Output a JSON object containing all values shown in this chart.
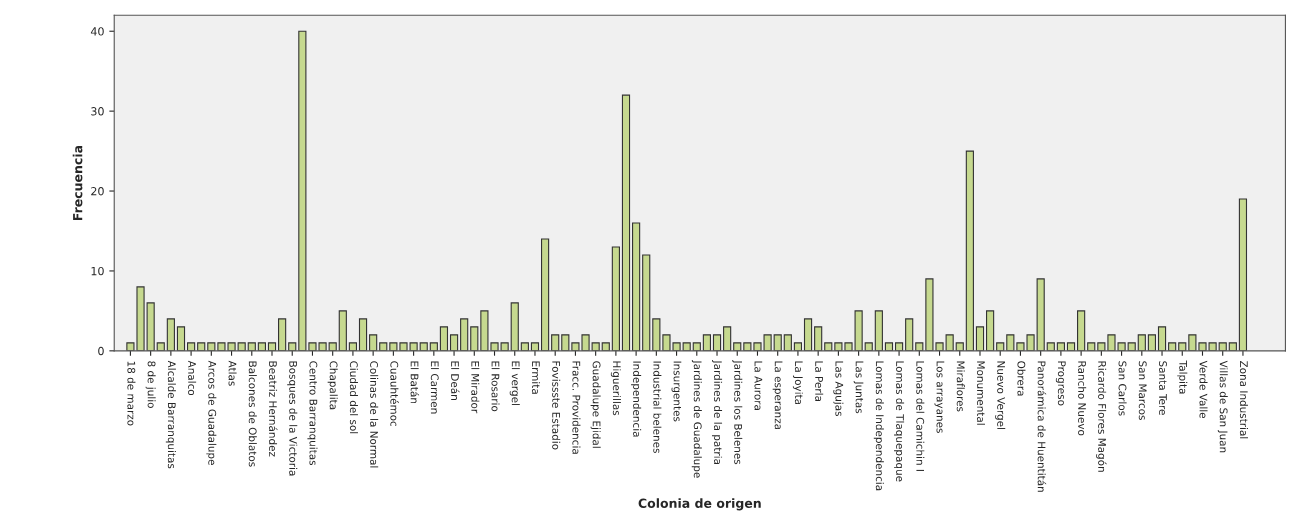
{
  "chart_data": {
    "type": "bar",
    "xlabel": "Colonia de origen",
    "ylabel": "Frecuencia",
    "categories": [
      "18 de marzo",
      null,
      "8 de julio",
      null,
      "Alcalde Barranquitas",
      null,
      "Analco",
      null,
      "Arcos de Guadalupe",
      null,
      "Atlas",
      null,
      "Balcones de Oblatos",
      null,
      "Beatriz Hernández",
      null,
      "Bosques de la Victoria",
      null,
      "Centro Barranquitas",
      null,
      "Chapalita",
      null,
      "Ciudad del sol",
      null,
      "Colinas de la Normal",
      null,
      "Cuauhtémoc",
      null,
      "El Batán",
      null,
      "El Carmen",
      null,
      "El Deán",
      null,
      "El Mirador",
      null,
      "El Rosario",
      null,
      "El vergel",
      null,
      "Ermita",
      null,
      "Fovissste Estadio",
      null,
      "Fracc. Providencia",
      null,
      "Guadalupe Ejidal",
      null,
      "Higuerillas",
      null,
      "Independencia",
      null,
      "Industrial belenes",
      null,
      "Insurgentes",
      null,
      "Jardines de Guadalupe",
      null,
      "Jardines de la patria",
      null,
      "Jardines los Belenes",
      null,
      "La Aurora",
      null,
      "La esperanza",
      null,
      "La Joyita",
      null,
      "La Perla",
      null,
      "Las Agujas",
      null,
      "Las Juntas",
      null,
      "Lomas de Independencia",
      null,
      "Lomas de Tlaquepaque",
      null,
      "Lomas del Camichin I",
      null,
      "Los arrayanes",
      null,
      "Miraflores",
      null,
      "Monumental",
      null,
      "Nuevo Vergel",
      null,
      "Obrera",
      null,
      "Panorámica de Huentitán",
      null,
      "Progreso",
      null,
      "Rancho Nuevo",
      null,
      "Ricardo Flores Magón",
      null,
      "San Carlos",
      null,
      "San Marcos",
      null,
      "Santa Tere",
      null,
      "Talpita",
      null,
      "Verde Valle",
      null,
      "Villas de San Juan",
      null,
      "Zona Industrial"
    ],
    "values": [
      1,
      8,
      6,
      1,
      4,
      3,
      1,
      1,
      1,
      1,
      1,
      1,
      1,
      1,
      1,
      4,
      1,
      40,
      1,
      1,
      1,
      5,
      1,
      4,
      2,
      1,
      1,
      1,
      1,
      1,
      1,
      3,
      2,
      4,
      3,
      5,
      1,
      1,
      6,
      1,
      1,
      14,
      2,
      2,
      1,
      2,
      1,
      1,
      13,
      32,
      16,
      12,
      4,
      2,
      1,
      1,
      1,
      2,
      2,
      3,
      1,
      1,
      1,
      2,
      2,
      2,
      1,
      4,
      3,
      1,
      1,
      1,
      5,
      1,
      5,
      1,
      1,
      4,
      1,
      9,
      1,
      2,
      1,
      25,
      3,
      5,
      1,
      2,
      1,
      2,
      9,
      1,
      1,
      1,
      5,
      1,
      1,
      2,
      1,
      1,
      2,
      2,
      3,
      1,
      1,
      2,
      1,
      1,
      1,
      1,
      19
    ],
    "color": "#c6d98f",
    "ylim": [
      0,
      42
    ],
    "yticks": [
      0,
      10,
      20,
      30,
      40
    ],
    "grid": false,
    "legend": false
  }
}
